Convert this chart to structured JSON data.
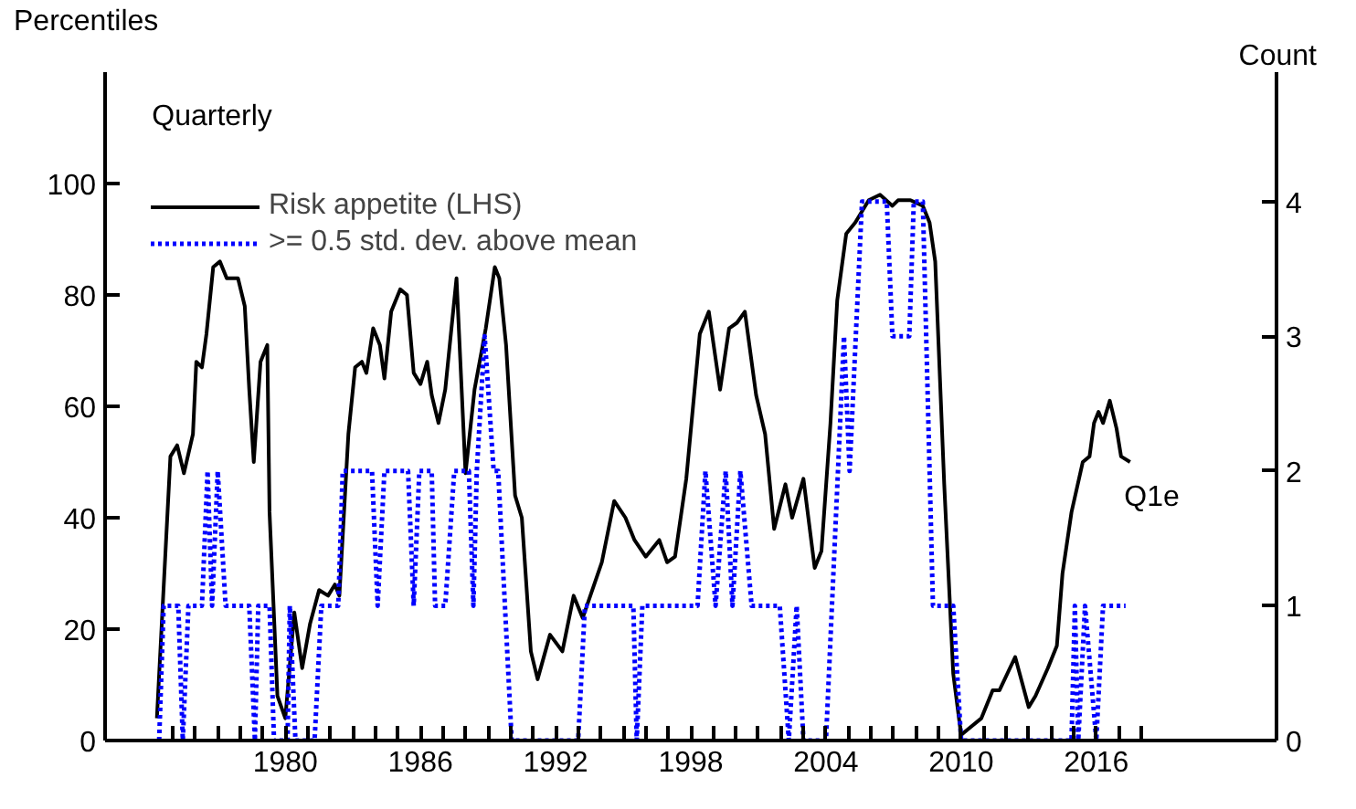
{
  "chart_data": {
    "type": "line",
    "ylabel": "Percentiles",
    "y2label": "Count",
    "annotations": [
      "Quarterly",
      "Q1e"
    ],
    "xlim": [
      1972,
      2024
    ],
    "ylim": [
      0,
      120
    ],
    "y2lim": [
      0,
      4.96
    ],
    "xticks": [
      {
        "value": 1975,
        "label": null
      },
      {
        "value": 1976,
        "label": null
      },
      {
        "value": 1977,
        "label": null
      },
      {
        "value": 1978,
        "label": null
      },
      {
        "value": 1979,
        "label": null
      },
      1980,
      {
        "value": 1981,
        "label": null
      },
      {
        "value": 1982,
        "label": null
      },
      {
        "value": 1983,
        "label": null
      },
      {
        "value": 1984,
        "label": null
      },
      {
        "value": 1985,
        "label": null
      },
      1986,
      {
        "value": 1987,
        "label": null
      },
      {
        "value": 1988,
        "label": null
      },
      {
        "value": 1989,
        "label": null
      },
      {
        "value": 1990,
        "label": null
      },
      {
        "value": 1991,
        "label": null
      },
      1992,
      {
        "value": 1993,
        "label": null
      },
      {
        "value": 1994,
        "label": null
      },
      {
        "value": 1995,
        "label": null
      },
      {
        "value": 1996,
        "label": null
      },
      {
        "value": 1997,
        "label": null
      },
      1998,
      {
        "value": 1999,
        "label": null
      },
      {
        "value": 2000,
        "label": null
      },
      {
        "value": 2001,
        "label": null
      },
      {
        "value": 2002,
        "label": null
      },
      {
        "value": 2003,
        "label": null
      },
      2004,
      {
        "value": 2005,
        "label": null
      },
      {
        "value": 2006,
        "label": null
      },
      {
        "value": 2007,
        "label": null
      },
      {
        "value": 2008,
        "label": null
      },
      {
        "value": 2009,
        "label": null
      },
      2010,
      {
        "value": 2011,
        "label": null
      },
      {
        "value": 2012,
        "label": null
      },
      {
        "value": 2013,
        "label": null
      },
      {
        "value": 2014,
        "label": null
      },
      {
        "value": 2015,
        "label": null
      },
      2016,
      {
        "value": 2017,
        "label": null
      },
      {
        "value": 2018,
        "label": null
      }
    ],
    "yticks": [
      0,
      20,
      40,
      60,
      80,
      100
    ],
    "y2ticks": [
      0,
      1,
      2,
      3,
      4
    ],
    "grid": false,
    "legend": "top left",
    "marker": "none",
    "series": [
      {
        "name": "Risk appetite (LHS)",
        "color": "#000000",
        "line_style": "solid",
        "x": [
          1974.3,
          1974.9,
          1975.2,
          1975.5,
          1975.9,
          1976.05,
          1976.3,
          1976.5,
          1976.8,
          1977.1,
          1977.4,
          1977.9,
          1978.2,
          1978.4,
          1978.6,
          1978.9,
          1979.2,
          1979.3,
          1979.65,
          1980.0,
          1980.4,
          1980.75,
          1981.1,
          1981.5,
          1981.9,
          1982.2,
          1982.4,
          1982.8,
          1983.1,
          1983.4,
          1983.6,
          1983.9,
          1984.2,
          1984.4,
          1984.7,
          1985.1,
          1985.4,
          1985.7,
          1986.0,
          1986.3,
          1986.5,
          1986.8,
          1987.1,
          1987.6,
          1988.0,
          1988.4,
          1988.9,
          1989.3,
          1989.5,
          1989.8,
          1990.2,
          1990.5,
          1990.9,
          1991.2,
          1991.75,
          1992.3,
          1992.8,
          1993.2,
          1994.05,
          1994.6,
          1995.1,
          1995.5,
          1996.0,
          1996.6,
          1996.95,
          1997.3,
          1997.8,
          1998.4,
          1998.8,
          1999.3,
          1999.7,
          2000.05,
          2000.4,
          2000.9,
          2001.3,
          2001.7,
          2002.2,
          2002.5,
          2003.0,
          2003.5,
          2003.8,
          2004.2,
          2004.5,
          2004.9,
          2005.3,
          2005.9,
          2006.4,
          2006.95,
          2007.2,
          2007.75,
          2008.3,
          2008.6,
          2008.85,
          2009.25,
          2009.65,
          2010.0,
          2010.3,
          2010.9,
          2011.4,
          2011.7,
          2012.4,
          2013.0,
          2013.3,
          2013.85,
          2014.25,
          2014.5,
          2014.9,
          2015.4,
          2015.7,
          2015.9,
          2016.1,
          2016.3,
          2016.6,
          2016.9,
          2017.1,
          2017.5
        ],
        "values": [
          4,
          51,
          53,
          48,
          55,
          68,
          67,
          73,
          85,
          86,
          83,
          83,
          78,
          63,
          50,
          68,
          71,
          41,
          8,
          4,
          23,
          13,
          21,
          27,
          26,
          28,
          26,
          55,
          67,
          68,
          66,
          74,
          71,
          65,
          77,
          81,
          80,
          66,
          64,
          68,
          62,
          57,
          63,
          83,
          48,
          63,
          74,
          85,
          83,
          71,
          44,
          40,
          16,
          11,
          19,
          16,
          26,
          22,
          32,
          43,
          40,
          36,
          33,
          36,
          32,
          33,
          47,
          73,
          77,
          63,
          74,
          75,
          77,
          62,
          55,
          38,
          46,
          40,
          47,
          31,
          34,
          57,
          79,
          91,
          93,
          97,
          98,
          96,
          97,
          97,
          96,
          93,
          86,
          46,
          12,
          1,
          2,
          4,
          9,
          9,
          15,
          6,
          8,
          13,
          17,
          30,
          41,
          50,
          51,
          57,
          59,
          57,
          61,
          56,
          51,
          50
        ]
      },
      {
        "name": ">= 0.5 std. dev. above mean",
        "color": "#0000ff",
        "line_style": "dotted",
        "axis": "y2",
        "x": [
          1974.4,
          1974.6,
          1975.25,
          1975.45,
          1975.7,
          1976.3,
          1976.55,
          1976.75,
          1977.0,
          1977.35,
          1978.4,
          1978.65,
          1978.8,
          1979.3,
          1979.5,
          1980.1,
          1980.2,
          1980.45,
          1981.3,
          1981.6,
          1982.35,
          1982.55,
          1983.85,
          1984.1,
          1984.4,
          1985.45,
          1985.7,
          1985.95,
          1986.5,
          1986.65,
          1987.1,
          1987.5,
          1988.15,
          1988.35,
          1988.5,
          1988.85,
          1989.25,
          1989.45,
          1990.05,
          1993.0,
          1993.3,
          1995.45,
          1995.6,
          1995.85,
          1998.3,
          1998.65,
          1999.1,
          1999.55,
          1999.85,
          2000.2,
          2000.7,
          2001.95,
          2002.35,
          2002.7,
          2003.0,
          2004.0,
          2004.8,
          2005.05,
          2005.6,
          2006.7,
          2006.95,
          2007.7,
          2007.9,
          2008.3,
          2008.75,
          2009.65,
          2010.0,
          2014.9,
          2015.05,
          2015.2,
          2015.5,
          2016.0,
          2016.3,
          2017.3
        ],
        "values": [
          0,
          1,
          1,
          0,
          1,
          1,
          2,
          1,
          2,
          1,
          1,
          0,
          1,
          1,
          0,
          0,
          1,
          0,
          0,
          1,
          1,
          2,
          2,
          1,
          2,
          2,
          1,
          2,
          2,
          1,
          1,
          2,
          2,
          1,
          2,
          3,
          2,
          2,
          0,
          0,
          1,
          1,
          0,
          1,
          1,
          2,
          1,
          2,
          1,
          2,
          1,
          1,
          0,
          1,
          0,
          0,
          3,
          2,
          4,
          4,
          3,
          3,
          4,
          4,
          1,
          1,
          0,
          0,
          1,
          0,
          1,
          0,
          1,
          1
        ]
      }
    ]
  }
}
